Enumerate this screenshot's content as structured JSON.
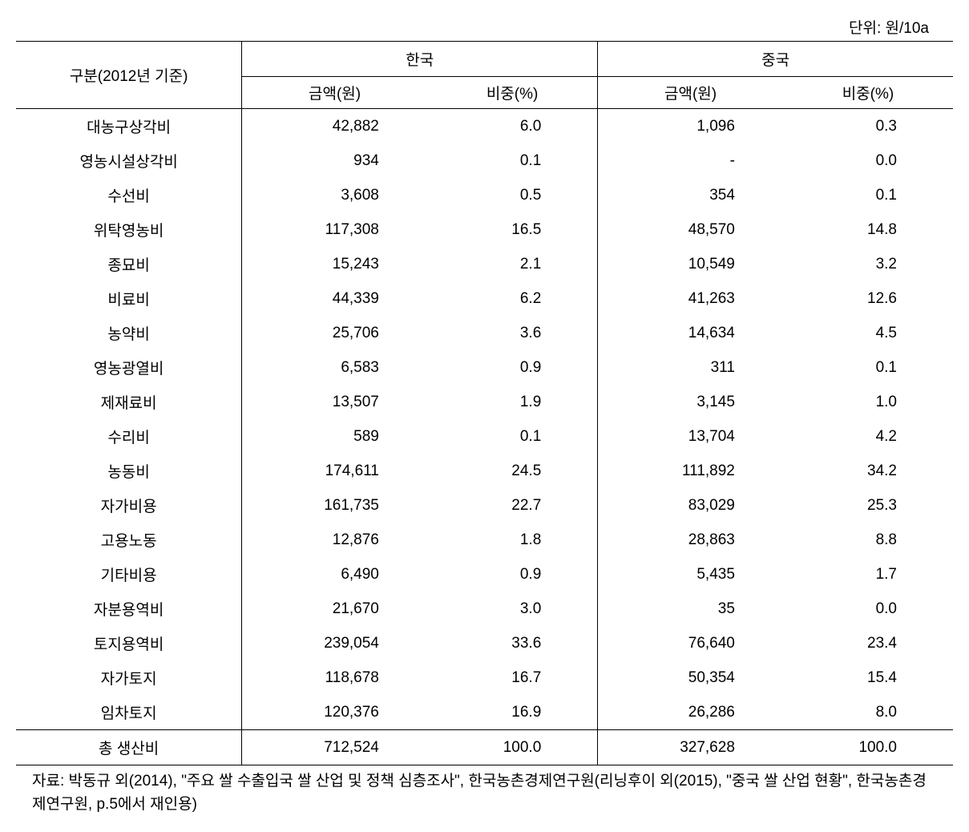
{
  "unit_label": "단위: 원/10a",
  "table": {
    "type": "table",
    "header": {
      "row_label": "구분(2012년 기준)",
      "countries": [
        "한국",
        "중국"
      ],
      "sub_headers": [
        "금액(원)",
        "비중(%)",
        "금액(원)",
        "비중(%)"
      ]
    },
    "col_alignments": [
      "center",
      "right",
      "right",
      "right",
      "right"
    ],
    "rows": [
      {
        "label": "대농구상각비",
        "kr_amount": "42,882",
        "kr_pct": "6.0",
        "cn_amount": "1,096",
        "cn_pct": "0.3"
      },
      {
        "label": "영농시설상각비",
        "kr_amount": "934",
        "kr_pct": "0.1",
        "cn_amount": "-",
        "cn_pct": "0.0"
      },
      {
        "label": "수선비",
        "kr_amount": "3,608",
        "kr_pct": "0.5",
        "cn_amount": "354",
        "cn_pct": "0.1"
      },
      {
        "label": "위탁영농비",
        "kr_amount": "117,308",
        "kr_pct": "16.5",
        "cn_amount": "48,570",
        "cn_pct": "14.8"
      },
      {
        "label": "종묘비",
        "kr_amount": "15,243",
        "kr_pct": "2.1",
        "cn_amount": "10,549",
        "cn_pct": "3.2"
      },
      {
        "label": "비료비",
        "kr_amount": "44,339",
        "kr_pct": "6.2",
        "cn_amount": "41,263",
        "cn_pct": "12.6"
      },
      {
        "label": "농약비",
        "kr_amount": "25,706",
        "kr_pct": "3.6",
        "cn_amount": "14,634",
        "cn_pct": "4.5"
      },
      {
        "label": "영농광열비",
        "kr_amount": "6,583",
        "kr_pct": "0.9",
        "cn_amount": "311",
        "cn_pct": "0.1"
      },
      {
        "label": "제재료비",
        "kr_amount": "13,507",
        "kr_pct": "1.9",
        "cn_amount": "3,145",
        "cn_pct": "1.0"
      },
      {
        "label": "수리비",
        "kr_amount": "589",
        "kr_pct": "0.1",
        "cn_amount": "13,704",
        "cn_pct": "4.2"
      },
      {
        "label": "농동비",
        "kr_amount": "174,611",
        "kr_pct": "24.5",
        "cn_amount": "111,892",
        "cn_pct": "34.2"
      },
      {
        "label": "자가비용",
        "kr_amount": "161,735",
        "kr_pct": "22.7",
        "cn_amount": "83,029",
        "cn_pct": "25.3"
      },
      {
        "label": "고용노동",
        "kr_amount": "12,876",
        "kr_pct": "1.8",
        "cn_amount": "28,863",
        "cn_pct": "8.8"
      },
      {
        "label": "기타비용",
        "kr_amount": "6,490",
        "kr_pct": "0.9",
        "cn_amount": "5,435",
        "cn_pct": "1.7"
      },
      {
        "label": "자분용역비",
        "kr_amount": "21,670",
        "kr_pct": "3.0",
        "cn_amount": "35",
        "cn_pct": "0.0"
      },
      {
        "label": "토지용역비",
        "kr_amount": "239,054",
        "kr_pct": "33.6",
        "cn_amount": "76,640",
        "cn_pct": "23.4"
      },
      {
        "label": "자가토지",
        "kr_amount": "118,678",
        "kr_pct": "16.7",
        "cn_amount": "50,354",
        "cn_pct": "15.4"
      },
      {
        "label": "임차토지",
        "kr_amount": "120,376",
        "kr_pct": "16.9",
        "cn_amount": "26,286",
        "cn_pct": "8.0"
      }
    ],
    "total_row": {
      "label": "총 생산비",
      "kr_amount": "712,524",
      "kr_pct": "100.0",
      "cn_amount": "327,628",
      "cn_pct": "100.0"
    },
    "background_color": "#ffffff",
    "border_color": "#000000",
    "text_color": "#000000",
    "font_size_pt": 14
  },
  "source_note": "자료: 박동규 외(2014), \"주요 쌀 수출입국 쌀 산업 및 정책 심층조사\", 한국농촌경제연구원(리닝후이 외(2015), \"중국 쌀 산업 현황\", 한국농촌경제연구원, p.5에서 재인용)"
}
